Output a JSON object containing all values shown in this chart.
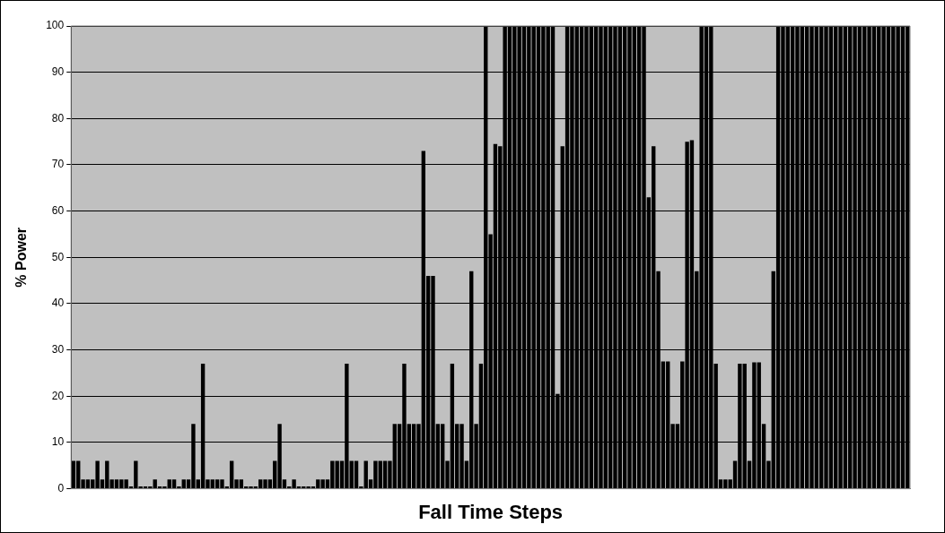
{
  "chart_data": {
    "type": "bar",
    "xlabel": "Fall Time Steps",
    "ylabel": "% Power",
    "color": "#000000",
    "ylim": [
      0,
      100
    ],
    "yticks": [
      0,
      10,
      20,
      30,
      40,
      50,
      60,
      70,
      80,
      90,
      100
    ],
    "grid": "y",
    "tick_labels": "y",
    "legend": false,
    "categories": [
      null,
      null,
      null,
      null,
      null,
      null,
      null,
      null,
      null,
      null,
      null,
      null,
      null,
      null,
      null,
      null,
      null,
      null,
      null,
      null,
      null,
      null,
      null,
      null,
      null,
      null,
      null,
      null,
      null,
      null,
      null,
      null,
      null,
      null,
      null,
      null,
      null,
      null,
      null,
      null,
      null,
      null,
      null,
      null,
      null,
      null,
      null,
      null,
      null,
      null,
      null,
      null,
      null,
      null,
      null,
      null,
      null,
      null,
      null,
      null,
      null,
      null,
      null,
      null,
      null,
      null,
      null,
      null,
      null,
      null,
      null,
      null,
      null,
      null,
      null,
      null,
      null,
      null,
      null,
      null,
      null,
      null,
      null,
      null,
      null,
      null,
      null,
      null,
      null,
      null,
      null,
      null,
      null,
      null,
      null,
      null,
      null,
      null,
      null,
      null,
      null,
      null,
      null,
      null,
      null,
      null,
      null,
      null,
      null,
      null,
      null,
      null,
      null,
      null,
      null,
      null,
      null,
      null,
      null,
      null,
      null,
      null,
      null,
      null,
      null,
      null,
      null,
      null,
      null,
      null,
      null,
      null,
      null,
      null,
      null,
      null,
      null,
      null,
      null,
      null,
      null,
      null,
      null,
      null,
      null,
      null,
      null,
      null,
      null,
      null,
      null,
      null,
      null,
      null,
      null,
      null,
      null,
      null,
      null,
      null,
      null,
      null,
      null,
      null,
      null,
      null,
      null,
      null,
      null,
      null,
      null,
      null,
      null,
      null,
      null
    ],
    "values": [
      6,
      6,
      2,
      2,
      2,
      6,
      2,
      6,
      2,
      2,
      2,
      2,
      0.5,
      6,
      0.5,
      0.5,
      0.5,
      2,
      0.5,
      0.5,
      2,
      2,
      0.5,
      2,
      2,
      14,
      2,
      27,
      2,
      2,
      2,
      2,
      0.5,
      6,
      2,
      2,
      0.5,
      0.5,
      0.5,
      2,
      2,
      2,
      6,
      14,
      2,
      0.5,
      2,
      0.5,
      0.5,
      0.5,
      0.5,
      2,
      2,
      2,
      6,
      6,
      6,
      27,
      6,
      6,
      0.5,
      6,
      2,
      6,
      6,
      6,
      6,
      14,
      14,
      27,
      14,
      14,
      14,
      73,
      46,
      46,
      14,
      14,
      6,
      27,
      14,
      14,
      6,
      47,
      14,
      27,
      100,
      55,
      74.5,
      74,
      100,
      100,
      100,
      100,
      100,
      100,
      100,
      100,
      100,
      100,
      100,
      20.5,
      74,
      100,
      100,
      100,
      100,
      100,
      100,
      100,
      100,
      100,
      100,
      100,
      100,
      100,
      100,
      100,
      100,
      100,
      63,
      74,
      47,
      27.5,
      27.5,
      14,
      14,
      27.5,
      75,
      75.3,
      47,
      100,
      100,
      100,
      27,
      2,
      2,
      2,
      6,
      27,
      27,
      6,
      27.3,
      27.3,
      14,
      6,
      47,
      100,
      100,
      100,
      100,
      100,
      100,
      100,
      100,
      100,
      100,
      100,
      100,
      100,
      100,
      100,
      100,
      100,
      100,
      100,
      100,
      100,
      100,
      100,
      100,
      100,
      100,
      100,
      100
    ]
  }
}
